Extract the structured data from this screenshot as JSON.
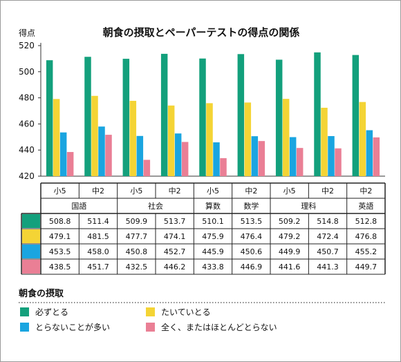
{
  "chart_data": {
    "type": "bar",
    "title": "朝食の摂取とペーパーテストの得点の関係",
    "ylabel": "得点",
    "ylim": [
      420,
      520
    ],
    "yticks": [
      420,
      440,
      460,
      480,
      500,
      520
    ],
    "grid": false,
    "categories": [
      {
        "grade": "小5",
        "subject": "国語"
      },
      {
        "grade": "中2",
        "subject": "国語"
      },
      {
        "grade": "小5",
        "subject": "社会"
      },
      {
        "grade": "中2",
        "subject": "社会"
      },
      {
        "grade": "小5",
        "subject": "算数"
      },
      {
        "grade": "中2",
        "subject": "数学"
      },
      {
        "grade": "小5",
        "subject": "理科"
      },
      {
        "grade": "中2",
        "subject": "理科"
      },
      {
        "grade": "中2",
        "subject": "英語"
      }
    ],
    "grade_labels": [
      "小5",
      "中2",
      "小5",
      "中2",
      "小5",
      "中2",
      "小5",
      "中2",
      "中2"
    ],
    "subject_labels": [
      {
        "label": "国語",
        "span": 2
      },
      {
        "label": "社会",
        "span": 2
      },
      {
        "label": "算数",
        "span": 1
      },
      {
        "label": "数学",
        "span": 1
      },
      {
        "label": "理科",
        "span": 2
      },
      {
        "label": "英語",
        "span": 1
      }
    ],
    "series": [
      {
        "name": "必ずとる",
        "color": "#13a07c",
        "values": [
          508.8,
          511.4,
          509.9,
          513.7,
          510.1,
          513.5,
          509.2,
          514.8,
          512.8
        ]
      },
      {
        "name": "たいていとる",
        "color": "#f4d435",
        "values": [
          479.1,
          481.5,
          477.7,
          474.1,
          475.9,
          476.4,
          479.2,
          472.4,
          476.8
        ]
      },
      {
        "name": "とらないことが多い",
        "color": "#1aa5e0",
        "values": [
          453.5,
          458.0,
          450.8,
          452.7,
          445.9,
          450.6,
          449.9,
          450.7,
          455.2
        ]
      },
      {
        "name": "全く、またはほとんどとらない",
        "color": "#ea7f95",
        "values": [
          438.5,
          451.7,
          432.5,
          446.2,
          433.8,
          446.9,
          441.6,
          441.3,
          449.7
        ]
      }
    ],
    "table_values": [
      [
        "508.8",
        "511.4",
        "509.9",
        "513.7",
        "510.1",
        "513.5",
        "509.2",
        "514.8",
        "512.8"
      ],
      [
        "479.1",
        "481.5",
        "477.7",
        "474.1",
        "475.9",
        "476.4",
        "479.2",
        "472.4",
        "476.8"
      ],
      [
        "453.5",
        "458.0",
        "450.8",
        "452.7",
        "445.9",
        "450.6",
        "449.9",
        "450.7",
        "455.2"
      ],
      [
        "438.5",
        "451.7",
        "432.5",
        "446.2",
        "433.8",
        "446.9",
        "441.6",
        "441.3",
        "449.7"
      ]
    ]
  },
  "legend": {
    "title": "朝食の摂取",
    "items": [
      {
        "label": "必ずとる",
        "color": "#13a07c"
      },
      {
        "label": "たいていとる",
        "color": "#f4d435"
      },
      {
        "label": "とらないことが多い",
        "color": "#1aa5e0"
      },
      {
        "label": "全く、またはほとんどとらない",
        "color": "#ea7f95"
      }
    ]
  }
}
